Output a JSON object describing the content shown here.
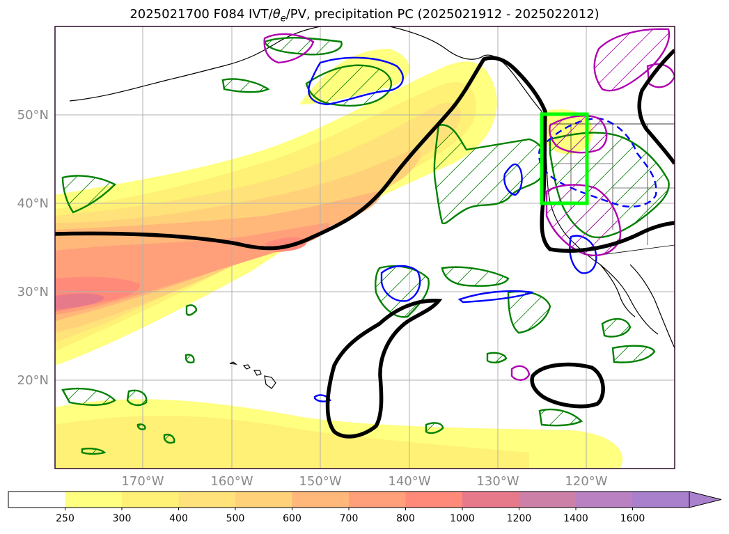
{
  "title": {
    "prefix": "2025021700 F084 IVT/",
    "symbol_theta": "θ",
    "symbol_sub": "e",
    "suffix": "/PV, precipitation PC (2025021912 - 2025022012)"
  },
  "map": {
    "lat_labels": [
      "50°N",
      "40°N",
      "30°N",
      "20°N"
    ],
    "lon_labels": [
      "170°W",
      "160°W",
      "150°W",
      "140°W",
      "130°W",
      "120°W"
    ],
    "region": "North Pacific / US West Coast",
    "highlight_box_color": "#00ff00",
    "contour_colors": {
      "pv": "#000000",
      "precip_pc": "#008000",
      "theta_e_positive": "#0000ff",
      "theta_e_negative": "#b000b0"
    }
  },
  "colorbar": {
    "levels": [
      "250",
      "300",
      "400",
      "500",
      "600",
      "700",
      "800",
      "1000",
      "1200",
      "1400",
      "1600"
    ],
    "colors": [
      "#ffffff",
      "#ffff80",
      "#fff175",
      "#ffe27a",
      "#ffd27a",
      "#ffb77a",
      "#ffa07a",
      "#ff8a7a",
      "#e77a8a",
      "#cc80a8",
      "#b980c2",
      "#a880cc"
    ],
    "extend": "max"
  }
}
